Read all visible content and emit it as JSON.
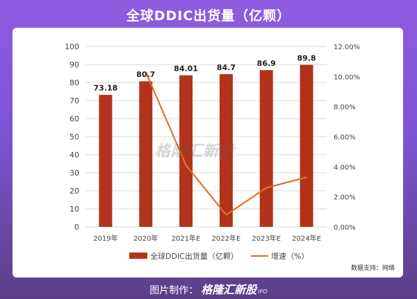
{
  "title": "全球DDIC出货量（亿颗）",
  "source": "数据支持：网络",
  "footer": {
    "prefix": "图片制作：",
    "brand": "格隆汇新股",
    "ipo": "IPO"
  },
  "watermark": "格隆汇新股",
  "colors": {
    "bar": "#b3331a",
    "line": "#d9752a",
    "grid": "#d9d9d9",
    "text": "#444444"
  },
  "chart_data": {
    "type": "bar",
    "categories": [
      "2019年",
      "2020年",
      "2021年E",
      "2022年E",
      "2023年E",
      "2024年E"
    ],
    "series": [
      {
        "name": "全球DDIC出货量（亿颗）",
        "type": "bar",
        "axis": "left",
        "values": [
          73.18,
          80.7,
          84.01,
          84.7,
          86.9,
          89.8
        ],
        "labels": [
          "73.18",
          "80.7",
          "84.01",
          "84.7",
          "86.9",
          "89.8"
        ]
      },
      {
        "name": "增速（%）",
        "type": "line",
        "axis": "right",
        "values": [
          null,
          10.3,
          4.1,
          0.8,
          2.6,
          3.3
        ]
      }
    ],
    "ylim": [
      0,
      100
    ],
    "yticks": [
      "0",
      "10",
      "20",
      "30",
      "40",
      "50",
      "60",
      "70",
      "80",
      "90",
      "100"
    ],
    "y2lim": [
      0,
      12
    ],
    "y2ticks": [
      "0.00%",
      "2.00%",
      "4.00%",
      "6.00%",
      "8.00%",
      "10.00%",
      "12.00%"
    ],
    "grid": true,
    "legend": "bottom"
  }
}
